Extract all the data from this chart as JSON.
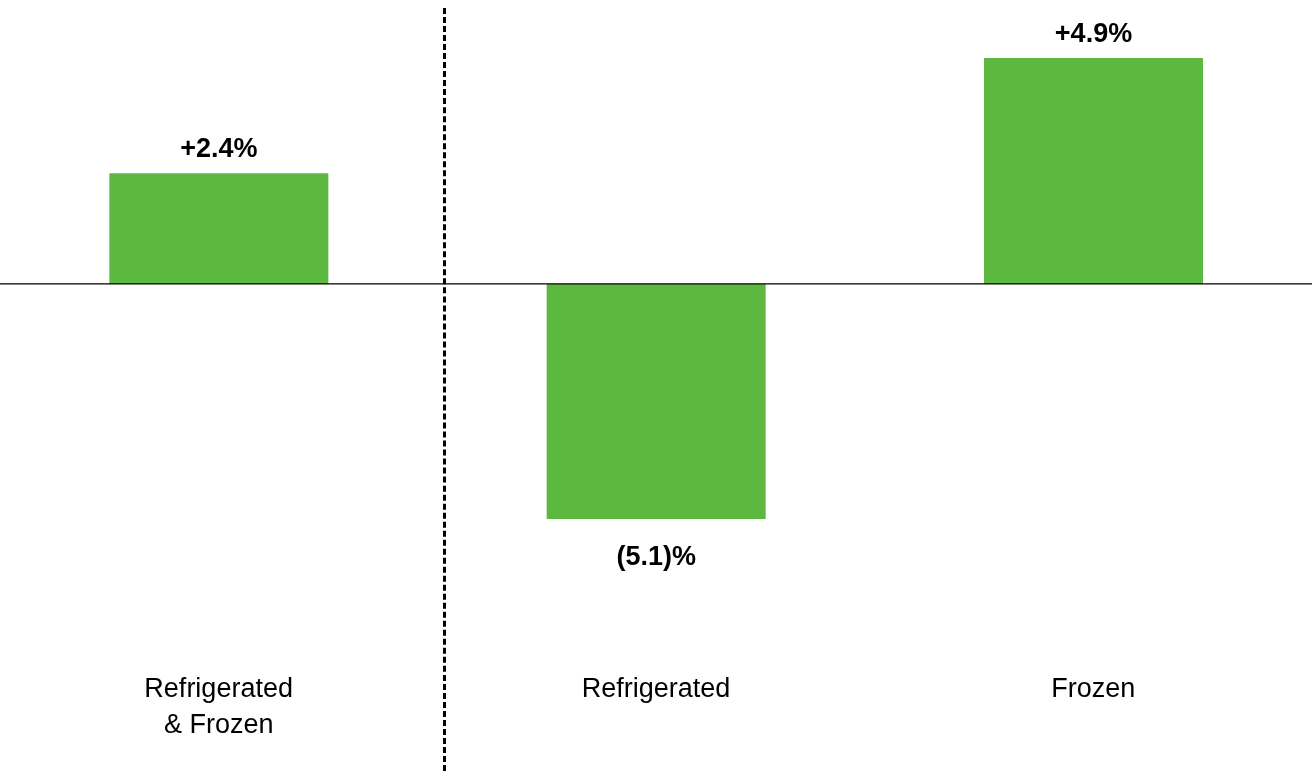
{
  "chart_data": {
    "type": "bar",
    "categories": [
      "Refrigerated & Frozen",
      "Refrigerated",
      "Frozen"
    ],
    "values": [
      2.4,
      -5.1,
      4.9
    ],
    "color": "#5cb83e",
    "value_labels": [
      "+2.4%",
      "(5.1)%",
      "+4.9%"
    ]
  }
}
